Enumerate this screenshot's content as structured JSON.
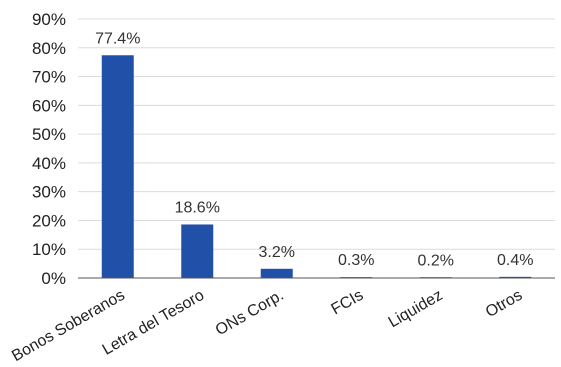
{
  "chart_data": {
    "type": "bar",
    "title": "",
    "xlabel": "",
    "ylabel": "",
    "categories": [
      "Bonos Soberanos",
      "Letra del Tesoro",
      "ONs Corp.",
      "FCIs",
      "Liquidez",
      "Otros"
    ],
    "values": [
      77.4,
      18.6,
      3.2,
      0.3,
      0.2,
      0.4
    ],
    "data_labels": [
      "77.4%",
      "18.6%",
      "3.2%",
      "0.3%",
      "0.2%",
      "0.4%"
    ],
    "ylim": [
      0,
      90
    ],
    "yticks": [
      0,
      10,
      20,
      30,
      40,
      50,
      60,
      70,
      80,
      90
    ],
    "ytick_labels": [
      "0%",
      "10%",
      "20%",
      "30%",
      "40%",
      "50%",
      "60%",
      "70%",
      "80%",
      "90%"
    ],
    "grid": true,
    "legend": "none",
    "bar_color": "#2050a8"
  }
}
